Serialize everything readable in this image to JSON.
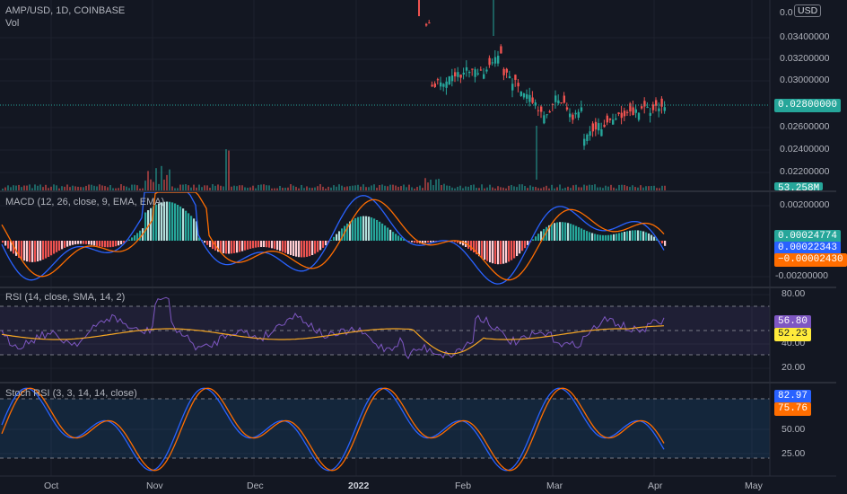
{
  "header": {
    "symbol_line": "AMP/USD, 1D, COINBASE",
    "vol_label": "Vol",
    "currency_button": "USD",
    "partial_top_label": "0.0"
  },
  "main_pane": {
    "price_ticks": [
      "0.03400000",
      "0.03200000",
      "0.03000000",
      "0.02600000",
      "0.02400000",
      "0.02200000"
    ],
    "last_price": "0.02800000",
    "volume_badge": "53.258M",
    "colors": {
      "up": "#26a69a",
      "down": "#ef5350",
      "last_price_bg": "#26a69a"
    }
  },
  "macd_pane": {
    "label": "MACD (12, 26, close, 9, EMA, EMA)",
    "ticks": [
      "0.00200000",
      "-0.00200000"
    ],
    "badges": [
      {
        "value": "0.00024774",
        "bg": "#26a69a",
        "fg": "#ffffff"
      },
      {
        "value": "0.00022343",
        "bg": "#2962ff",
        "fg": "#ffffff"
      },
      {
        "value": "−0.00002430",
        "bg": "#ff6d00",
        "fg": "#ffffff"
      }
    ]
  },
  "rsi_pane": {
    "label": "RSI (14, close, SMA, 14, 2)",
    "ticks": [
      "80.00",
      "40.00",
      "20.00"
    ],
    "badges": [
      {
        "value": "56.80",
        "bg": "#7e57c2",
        "fg": "#ffffff"
      },
      {
        "value": "52.23",
        "bg": "#ffeb3b",
        "fg": "#131722"
      }
    ]
  },
  "stoch_pane": {
    "label": "Stoch RSI (3, 3, 14, 14, close)",
    "ticks": [
      "50.00",
      "25.00"
    ],
    "badges": [
      {
        "value": "82.97",
        "bg": "#2962ff",
        "fg": "#ffffff"
      },
      {
        "value": "75.76",
        "bg": "#ff6d00",
        "fg": "#ffffff"
      }
    ]
  },
  "time_axis": {
    "labels": [
      "Oct",
      "Nov",
      "Dec",
      "2022",
      "Feb",
      "Mar",
      "Apr",
      "May"
    ]
  },
  "colors": {
    "background": "#131722",
    "grid": "#1e222d",
    "macd_line": "#2962ff",
    "signal_line": "#ff6d00",
    "rsi_line": "#7e57c2",
    "rsi_ma": "#ffeb3b",
    "stoch_k": "#2962ff",
    "stoch_d": "#ff6d00"
  }
}
